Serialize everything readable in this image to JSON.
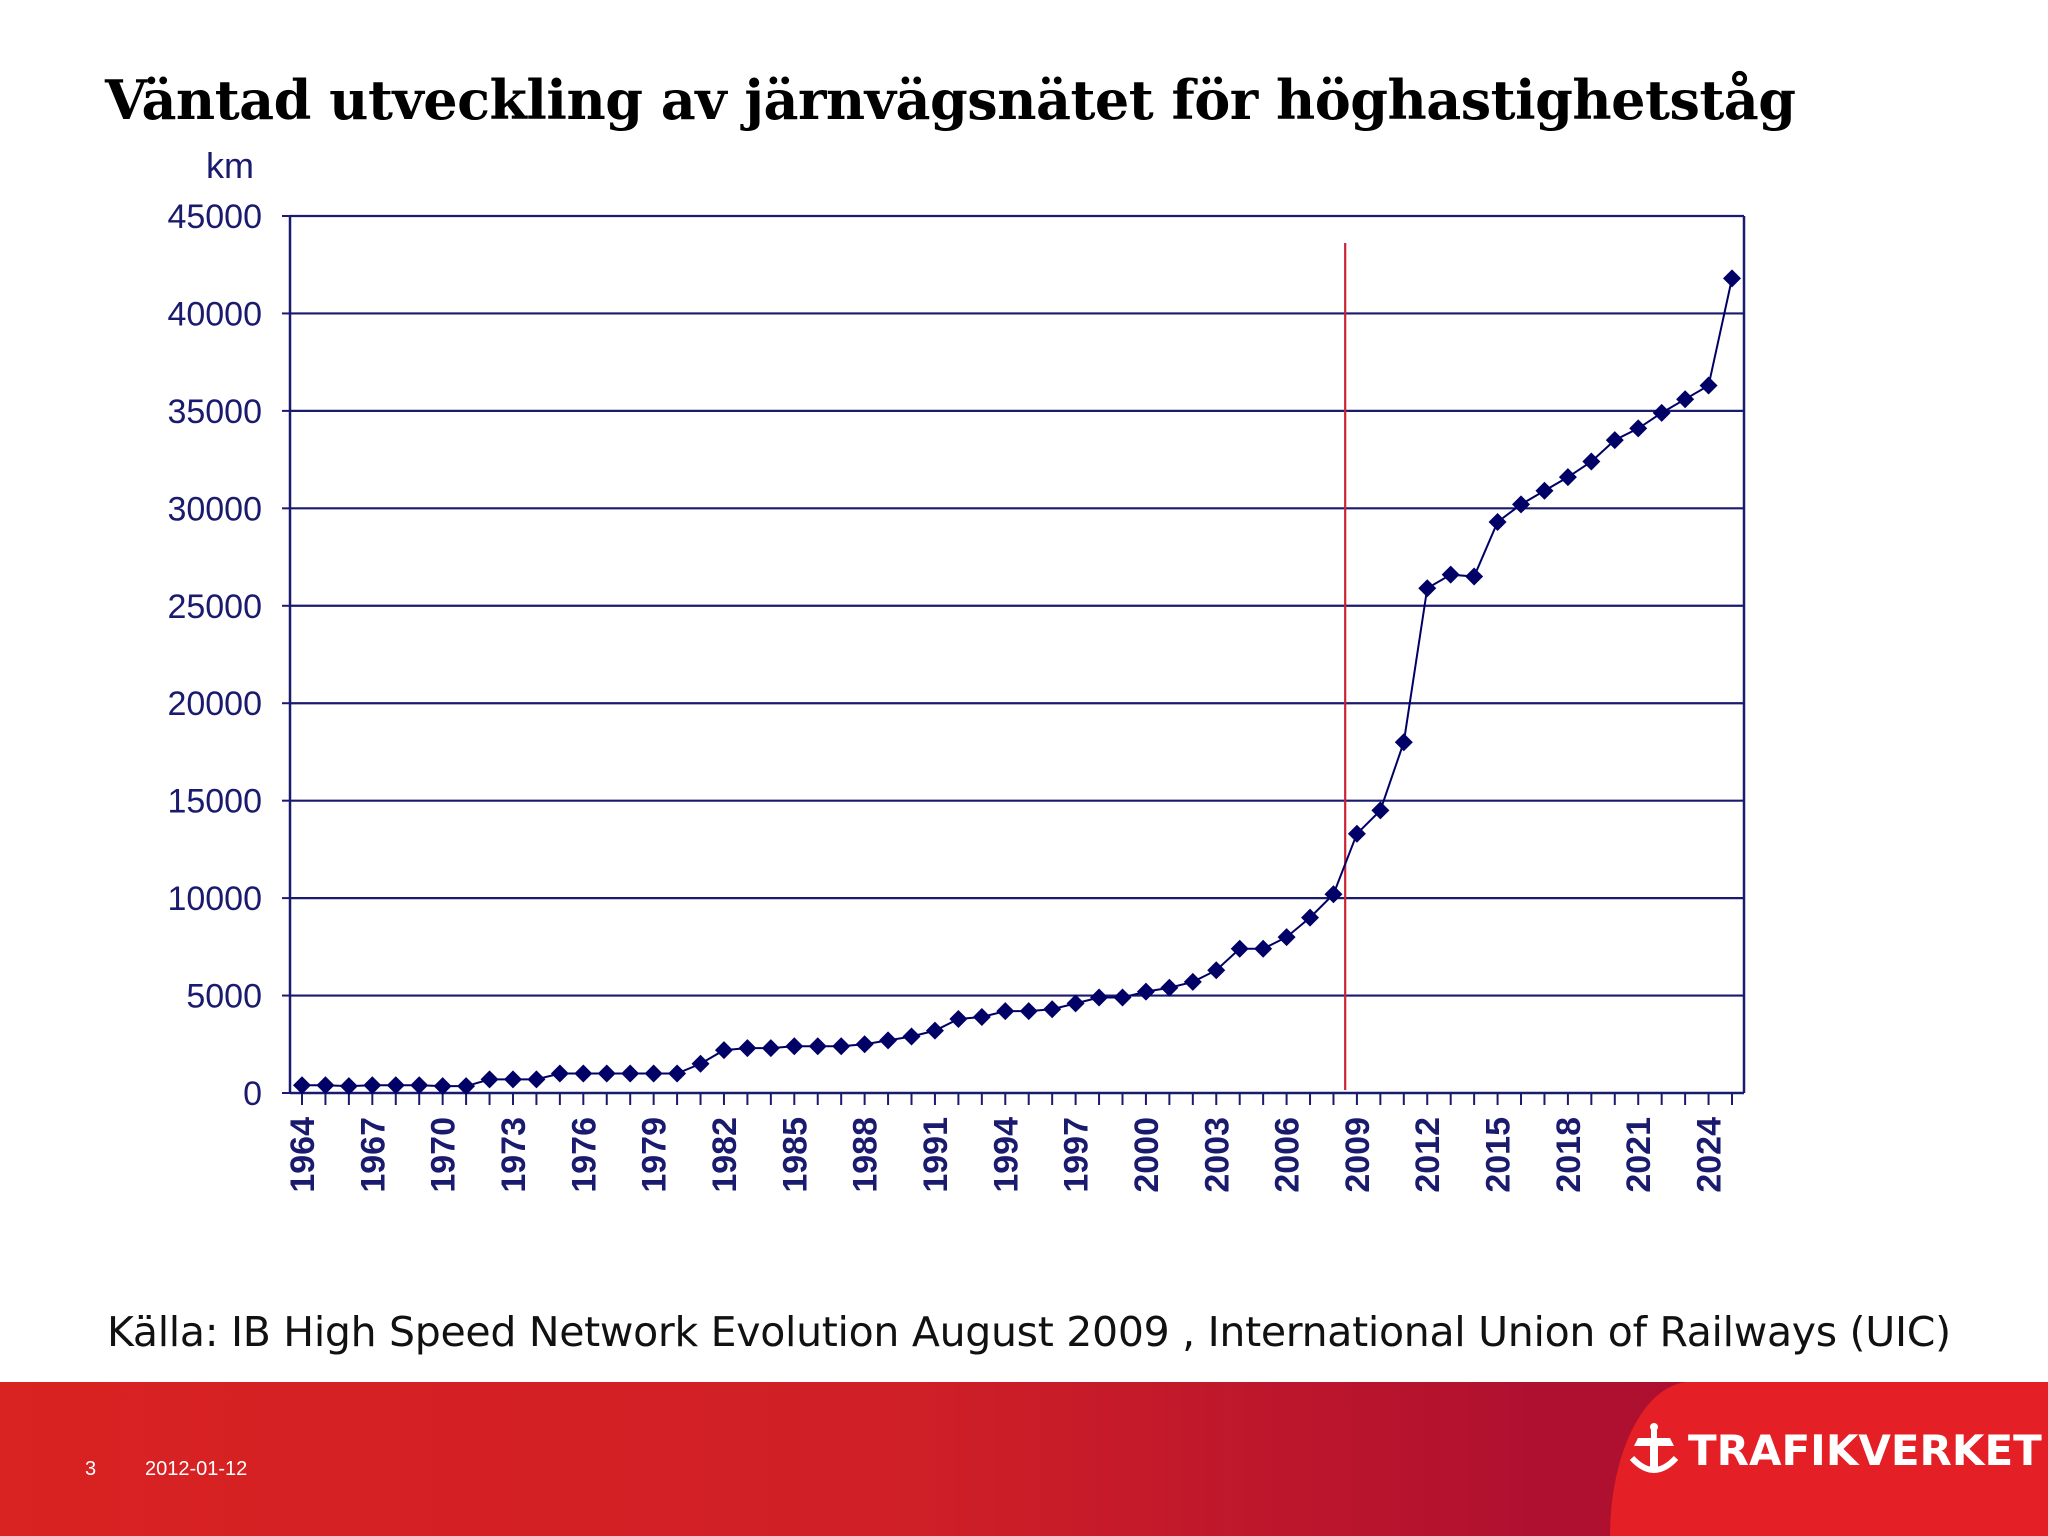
{
  "slide": {
    "title": "Väntad utveckling av järnvägsnätet för höghastighetståg",
    "source": "Källa: IB High Speed Network Evolution August 2009 , International Union of Railways (UIC)",
    "page_number": "3",
    "date": "2012-01-12",
    "logo_text": "TRAFIKVERKET"
  },
  "colors": {
    "axis": "#1a1a6e",
    "series": "#000066",
    "marker_line": "#cc2233",
    "footer": "#d42027"
  },
  "chart_data": {
    "type": "line",
    "title": "",
    "ylabel": "km",
    "xlabel": "",
    "ylim": [
      0,
      45000
    ],
    "yticks": [
      0,
      5000,
      10000,
      15000,
      20000,
      25000,
      30000,
      35000,
      40000,
      45000
    ],
    "xticks": [
      1964,
      1967,
      1970,
      1973,
      1976,
      1979,
      1982,
      1985,
      1988,
      1991,
      1994,
      1997,
      2000,
      2003,
      2006,
      2009,
      2012,
      2015,
      2018,
      2021,
      2024
    ],
    "xlim": [
      1964,
      2025
    ],
    "grid": true,
    "vertical_marker_year": 2008.5,
    "series": [
      {
        "marker": "diamond",
        "x": [
          1964,
          1965,
          1966,
          1967,
          1968,
          1969,
          1970,
          1971,
          1972,
          1973,
          1974,
          1975,
          1976,
          1977,
          1978,
          1979,
          1980,
          1981,
          1982,
          1983,
          1984,
          1985,
          1986,
          1987,
          1988,
          1989,
          1990,
          1991,
          1992,
          1993,
          1994,
          1995,
          1996,
          1997,
          1998,
          1999,
          2000,
          2001,
          2002,
          2003,
          2004,
          2005,
          2006,
          2007,
          2008,
          2009,
          2010,
          2011,
          2012,
          2013,
          2014,
          2015,
          2016,
          2017,
          2018,
          2019,
          2020,
          2021,
          2022,
          2023,
          2024,
          2025
        ],
        "values": [
          400,
          400,
          350,
          400,
          400,
          400,
          350,
          350,
          700,
          700,
          700,
          1000,
          1000,
          1000,
          1000,
          1000,
          1000,
          1500,
          2200,
          2300,
          2300,
          2400,
          2400,
          2400,
          2500,
          2700,
          2900,
          3200,
          3800,
          3900,
          4200,
          4200,
          4300,
          4600,
          4900,
          4900,
          5200,
          5400,
          5700,
          6300,
          7400,
          7400,
          8000,
          9000,
          10200,
          13300,
          14500,
          18000,
          25900,
          26600,
          26500,
          29300,
          30200,
          30900,
          31600,
          32400,
          33500,
          34100,
          34900,
          35600,
          36300,
          41800
        ]
      }
    ]
  }
}
